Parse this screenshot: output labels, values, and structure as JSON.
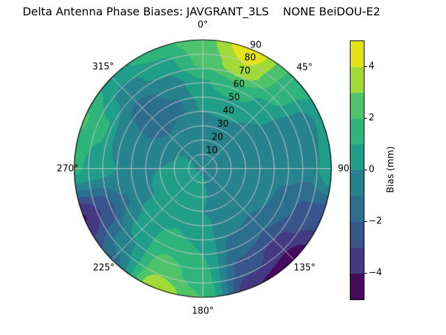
{
  "title": "Delta Antenna Phase Biases: JAVGRANT_3LS    NONE BeiDOU-E2",
  "polar": {
    "theta_ticks": [
      "0°",
      "45°",
      "90",
      "135°",
      "180°",
      "225°",
      "270°",
      "315°"
    ],
    "r_ticks": [
      "10",
      "20",
      "30",
      "40",
      "50",
      "60",
      "70",
      "80",
      "90"
    ],
    "grid_color": "#c6c6c6",
    "outline_color": "#000000"
  },
  "colorbar": {
    "label": "Bias (mm)",
    "ticks": [
      "4",
      "2",
      "0",
      "−2",
      "−4"
    ],
    "tick_values": [
      4,
      2,
      0,
      -2,
      -4
    ],
    "levels": [
      -5,
      -4,
      -3,
      -2,
      -1,
      0,
      1,
      2,
      3,
      4,
      5
    ],
    "colors_low_to_high": [
      "#460b5e",
      "#443a83",
      "#39568c",
      "#2d6e8e",
      "#26838e",
      "#219e8a",
      "#2fb47c",
      "#4ec36b",
      "#a0da39",
      "#e2e418"
    ]
  },
  "chart_data": {
    "type": "heatmap",
    "projection": "polar",
    "title": "Delta Antenna Phase Biases: JAVGRANT_3LS    NONE BeiDOU-E2",
    "colorbar_label": "Bias (mm)",
    "units": "mm",
    "value_range": [
      -5,
      5
    ],
    "colormap": "viridis",
    "theta_zero_location": "N",
    "theta_direction": "clockwise",
    "azimuth_deg": [
      0,
      22.5,
      45,
      67.5,
      90,
      112.5,
      135,
      157.5,
      180,
      202.5,
      225,
      247.5,
      270,
      292.5,
      315,
      337.5
    ],
    "zenith_deg": [
      0,
      15,
      30,
      45,
      60,
      75,
      90
    ],
    "values_mm": [
      [
        -0.1,
        -0.3,
        -0.4,
        0.2,
        0.9,
        2.3,
        2.6
      ],
      [
        -0.1,
        -0.3,
        -0.3,
        0.4,
        1.6,
        3.9,
        4.8
      ],
      [
        -0.1,
        -0.4,
        -0.4,
        0.0,
        0.7,
        1.7,
        1.8
      ],
      [
        -0.1,
        -0.4,
        -0.4,
        -0.5,
        -0.8,
        -0.8,
        0.3
      ],
      [
        -0.1,
        -0.3,
        -0.4,
        -0.5,
        -0.7,
        -0.6,
        1.0
      ],
      [
        -0.1,
        -0.4,
        -0.4,
        -0.7,
        -1.3,
        -2.2,
        -2.6
      ],
      [
        -0.1,
        -0.5,
        -0.5,
        -1.0,
        -2.0,
        -3.4,
        -4.6
      ],
      [
        -0.1,
        -0.4,
        -0.3,
        -0.8,
        -1.5,
        -2.5,
        -3.9
      ],
      [
        -0.1,
        0.2,
        0.0,
        0.5,
        1.0,
        1.4,
        2.0
      ],
      [
        -0.1,
        0.4,
        0.3,
        1.0,
        1.8,
        2.6,
        3.9
      ],
      [
        -0.1,
        0.4,
        0.3,
        0.6,
        0.4,
        -0.3,
        -1.4
      ],
      [
        -0.1,
        0.3,
        0.2,
        -0.2,
        -1.2,
        -2.9,
        -4.05
      ],
      [
        -0.1,
        0.2,
        0.0,
        -0.2,
        0.0,
        0.6,
        1.2
      ],
      [
        -0.1,
        0.1,
        -0.3,
        -0.8,
        -0.6,
        1.2,
        2.1
      ],
      [
        -0.1,
        -0.2,
        -0.9,
        -1.7,
        -1.3,
        -0.4,
        0.6
      ],
      [
        -0.1,
        -0.3,
        -0.6,
        -1.2,
        -0.8,
        0.4,
        1.6
      ]
    ]
  }
}
